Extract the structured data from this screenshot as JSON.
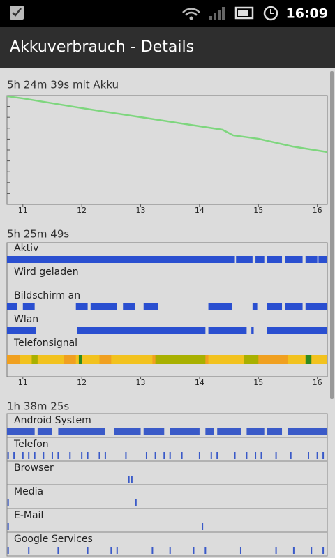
{
  "status_bar": {
    "time": "16:09"
  },
  "header": {
    "title": "Akkuverbrauch - Details"
  },
  "chart_data": [
    {
      "type": "line",
      "title": "5h 24m 39s mit Akku",
      "x": [
        10.73,
        11.0,
        12.0,
        13.0,
        14.0,
        14.39,
        14.57,
        15.0,
        15.58,
        16.17
      ],
      "series": [
        {
          "color": "#7ed67e",
          "values": [
            99.4,
            97.4,
            88.5,
            80.1,
            71.8,
            68.6,
            63.5,
            60.3,
            53.2,
            48.1
          ]
        }
      ],
      "xlim": [
        10.73,
        16.17
      ],
      "ylim": [
        0,
        100
      ],
      "xticks": [
        11,
        12,
        13,
        14,
        15,
        16
      ]
    },
    {
      "type": "timeline",
      "title": "5h 25m 49s",
      "xlim": [
        10.73,
        16.17
      ],
      "xticks": [
        11,
        12,
        13,
        14,
        15,
        16
      ],
      "tracks": [
        {
          "name": "Aktiv",
          "color": "#2a4fd0",
          "intervals": [
            [
              10.73,
              14.6
            ],
            [
              14.62,
              14.9
            ],
            [
              14.95,
              15.1
            ],
            [
              15.15,
              15.4
            ],
            [
              15.45,
              15.75
            ],
            [
              15.8,
              16.0
            ],
            [
              16.02,
              16.17
            ]
          ]
        },
        {
          "name": "Wird geladen",
          "color": "#2a4fd0",
          "intervals": []
        },
        {
          "name": "Bildschirm an",
          "color": "#2a4fd0",
          "intervals": [
            [
              10.73,
              10.9
            ],
            [
              11.0,
              11.2
            ],
            [
              11.9,
              12.1
            ],
            [
              12.15,
              12.6
            ],
            [
              12.7,
              12.9
            ],
            [
              13.05,
              13.3
            ],
            [
              14.15,
              14.55
            ],
            [
              14.9,
              14.98
            ],
            [
              15.15,
              15.4
            ],
            [
              15.45,
              15.75
            ],
            [
              15.8,
              16.17
            ]
          ]
        },
        {
          "name": "Wlan",
          "color": "#2a4fd0",
          "intervals": [
            [
              10.73,
              11.22
            ],
            [
              11.92,
              14.1
            ],
            [
              14.15,
              14.8
            ],
            [
              14.88,
              14.92
            ],
            [
              15.15,
              16.17
            ]
          ]
        },
        {
          "name": "Telefonsignal",
          "segments": [
            {
              "start": 10.73,
              "end": 16.17,
              "color": "#f0a020"
            },
            {
              "start": 10.95,
              "end": 11.7,
              "color": "#f2c21e"
            },
            {
              "start": 11.15,
              "end": 11.25,
              "color": "#a8b000"
            },
            {
              "start": 11.9,
              "end": 12.3,
              "color": "#f2c21e"
            },
            {
              "start": 11.95,
              "end": 12.0,
              "color": "#2e8b20"
            },
            {
              "start": 12.5,
              "end": 13.2,
              "color": "#f2c21e"
            },
            {
              "start": 13.25,
              "end": 14.1,
              "color": "#a8b000"
            },
            {
              "start": 14.15,
              "end": 14.8,
              "color": "#f2c21e"
            },
            {
              "start": 14.75,
              "end": 15.0,
              "color": "#a8b000"
            },
            {
              "start": 15.5,
              "end": 16.17,
              "color": "#f2c21e"
            },
            {
              "start": 15.8,
              "end": 15.9,
              "color": "#2e8b20"
            }
          ]
        }
      ]
    },
    {
      "type": "timeline",
      "title": "1h 38m 25s",
      "xlim": [
        10.73,
        16.17
      ],
      "tracks": [
        {
          "name": "Android System",
          "color": "#3a5ac8",
          "intervals": [
            [
              10.73,
              11.2
            ],
            [
              11.25,
              11.5
            ],
            [
              11.6,
              12.4
            ],
            [
              12.55,
              13.0
            ],
            [
              13.05,
              13.4
            ],
            [
              13.5,
              14.0
            ],
            [
              14.1,
              14.25
            ],
            [
              14.3,
              14.7
            ],
            [
              14.8,
              15.1
            ],
            [
              15.15,
              15.4
            ],
            [
              15.5,
              16.17
            ]
          ]
        },
        {
          "name": "Telefon",
          "color": "#3a5ac8",
          "events": [
            10.75,
            10.85,
            11.0,
            11.1,
            11.2,
            11.35,
            11.5,
            11.6,
            11.8,
            12.0,
            12.1,
            12.3,
            12.4,
            12.75,
            13.1,
            13.25,
            13.4,
            13.5,
            13.7,
            14.0,
            14.2,
            14.3,
            14.6,
            14.8,
            14.95,
            15.05,
            15.3,
            15.55,
            15.85,
            16.0,
            16.1
          ]
        },
        {
          "name": "Browser",
          "color": "#3a5ac8",
          "events": [
            12.8,
            12.85
          ]
        },
        {
          "name": "Media",
          "color": "#3a5ac8",
          "events": [
            10.75,
            12.92
          ]
        },
        {
          "name": "E-Mail",
          "color": "#3a5ac8",
          "events": [
            10.75,
            14.05
          ]
        },
        {
          "name": "Google Services",
          "color": "#3a5ac8",
          "events": [
            10.75,
            11.1,
            11.6,
            12.1,
            12.5,
            12.6,
            13.2,
            13.5,
            13.9,
            14.1,
            14.7,
            15.3,
            15.6,
            15.9,
            16.1
          ]
        }
      ]
    }
  ]
}
